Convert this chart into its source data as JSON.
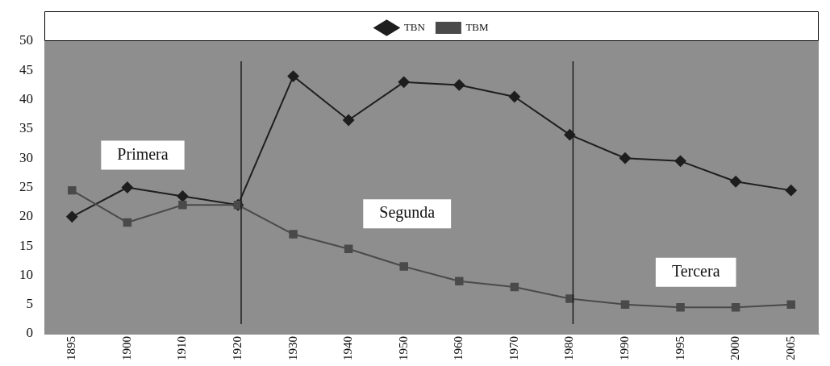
{
  "chart_data": {
    "type": "line",
    "categories": [
      "1895",
      "1900",
      "1910",
      "1920",
      "1930",
      "1940",
      "1950",
      "1960",
      "1970",
      "1980",
      "1990",
      "1995",
      "2000",
      "2005"
    ],
    "series": [
      {
        "name": "TBN",
        "color": "#1e1e1e",
        "marker": "diamond",
        "values": [
          20,
          25,
          23.5,
          22,
          44,
          36.5,
          43,
          42.5,
          40.5,
          34,
          30,
          29.5,
          26,
          24.5
        ]
      },
      {
        "name": "TBM",
        "color": "#4a4a4a",
        "marker": "square",
        "values": [
          24.5,
          19,
          22,
          22,
          17,
          14.5,
          11.5,
          9,
          8,
          6,
          5,
          4.5,
          4.5,
          5
        ]
      }
    ],
    "ylim": [
      0,
      50
    ],
    "yticks": [
      0,
      5,
      10,
      15,
      20,
      25,
      30,
      35,
      40,
      45,
      50
    ],
    "grid": false,
    "legend": "top",
    "ref_lines": [
      {
        "axis": "x",
        "value": "1920",
        "color": "#1e1e1e"
      },
      {
        "axis": "x",
        "value": "1980",
        "color": "#1e1e1e"
      }
    ],
    "annotations": [
      "Primera",
      "Segunda",
      "Tercera"
    ]
  }
}
